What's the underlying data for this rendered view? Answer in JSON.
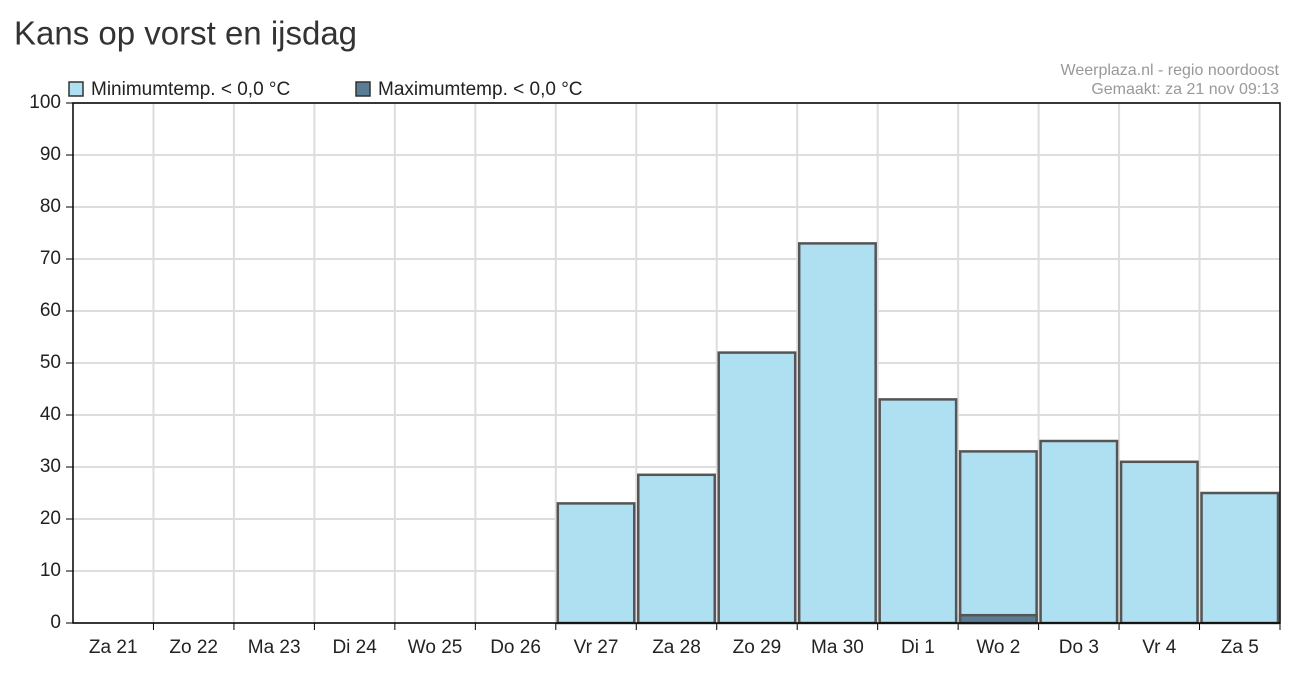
{
  "chart_data": {
    "type": "bar",
    "title": "Kans op vorst en ijsdag",
    "credits": [
      "Weerplaza.nl - regio noordoost",
      "Gemaakt: za 21 nov 09:13"
    ],
    "categories": [
      "Za 21",
      "Zo 22",
      "Ma 23",
      "Di 24",
      "Wo 25",
      "Do 26",
      "Vr 27",
      "Za 28",
      "Zo 29",
      "Ma 30",
      "Di 1",
      "Wo 2",
      "Do 3",
      "Vr 4",
      "Za 5"
    ],
    "series": [
      {
        "name": "Minimumtemp. < 0,0 °C",
        "color": "#aee0f2",
        "values": [
          0,
          0,
          0,
          0,
          0,
          0,
          23,
          28.5,
          52,
          73,
          43,
          33,
          35,
          31,
          25
        ]
      },
      {
        "name": "Maximumtemp. < 0,0 °C",
        "color": "#5a7d96",
        "values": [
          0,
          0,
          0,
          0,
          0,
          0,
          0,
          0,
          0,
          0,
          0,
          1.5,
          0,
          0,
          0
        ]
      }
    ],
    "ylim": [
      0,
      100
    ],
    "yticks": [
      0,
      10,
      20,
      30,
      40,
      50,
      60,
      70,
      80,
      90,
      100
    ],
    "grid": true
  }
}
